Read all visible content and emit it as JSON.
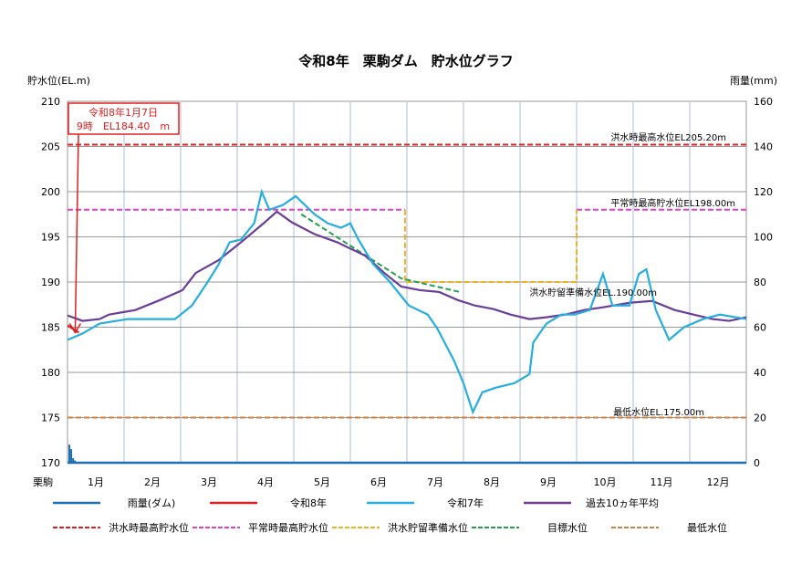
{
  "chart_data": {
    "type": "line",
    "title": "令和8年　栗駒ダム　貯水位グラフ",
    "ylabel": "貯水位(EL.m)",
    "y2label": "雨量(mm)",
    "ylim": [
      170,
      210
    ],
    "y2lim": [
      0,
      160
    ],
    "yticks": [
      "210",
      "205",
      "200",
      "195",
      "190",
      "185",
      "180",
      "175",
      "170"
    ],
    "y2ticks": [
      "160",
      "140",
      "120",
      "100",
      "80",
      "60",
      "40",
      "20",
      "0"
    ],
    "x_origin_label": "栗駒",
    "xticks": [
      "1月",
      "2月",
      "3月",
      "4月",
      "5月",
      "6月",
      "7月",
      "8月",
      "9月",
      "10月",
      "11月",
      "12月"
    ],
    "grid": true,
    "annotation": {
      "line1": "令和8年1月7日",
      "line2": "9時　EL184.40　m",
      "date": "1/7",
      "value": 184.4
    },
    "ref_labels": {
      "flood_max": "洪水時最高水位EL205.20m",
      "normal_max": "平常時最高貯水位EL198.00m",
      "flood_prep": "洪水貯留準備水位EL.190.00m",
      "min": "最低水位EL.175.00m"
    },
    "series": [
      {
        "name": "雨量(ダム)",
        "axis": "right",
        "color": "#1f6fb5",
        "kind": "bar",
        "points": [
          [
            "1/1",
            8
          ],
          [
            "1/2",
            6
          ],
          [
            "1/3",
            2
          ],
          [
            "1/4",
            1
          ]
        ]
      },
      {
        "name": "令和8年",
        "color": "#e02020",
        "points": [
          [
            "1/1",
            185.2
          ],
          [
            "1/4",
            184.8
          ],
          [
            "1/7",
            184.4
          ]
        ]
      },
      {
        "name": "令和7年",
        "color": "#27aee0",
        "points": [
          [
            "1/1",
            183.6
          ],
          [
            "1/9",
            184.3
          ],
          [
            "1/18",
            185.4
          ],
          [
            "2/3",
            185.9
          ],
          [
            "2/28",
            185.9
          ],
          [
            "3/7",
            187.4
          ],
          [
            "3/15",
            189.9
          ],
          [
            "3/21",
            191.9
          ],
          [
            "3/27",
            194.4
          ],
          [
            "4/3",
            194.7
          ],
          [
            "4/10",
            196.5
          ],
          [
            "4/14",
            200.0
          ],
          [
            "4/18",
            198.0
          ],
          [
            "4/25",
            198.5
          ],
          [
            "5/2",
            199.5
          ],
          [
            "5/7",
            198.5
          ],
          [
            "5/12",
            197.5
          ],
          [
            "5/19",
            196.5
          ],
          [
            "5/26",
            196.0
          ],
          [
            "5/31",
            196.5
          ],
          [
            "6/5",
            194.8
          ],
          [
            "6/13",
            192.0
          ],
          [
            "6/22",
            190.0
          ],
          [
            "7/2",
            187.4
          ],
          [
            "7/12",
            186.4
          ],
          [
            "7/17",
            184.9
          ],
          [
            "7/21",
            183.3
          ],
          [
            "7/26",
            181.3
          ],
          [
            "7/31",
            178.8
          ],
          [
            "8/6",
            175.6
          ],
          [
            "8/11",
            177.8
          ],
          [
            "8/18",
            178.3
          ],
          [
            "8/28",
            178.8
          ],
          [
            "9/6",
            179.8
          ],
          [
            "9/8",
            183.3
          ],
          [
            "9/15",
            185.4
          ],
          [
            "9/23",
            186.4
          ],
          [
            "9/30",
            186.4
          ],
          [
            "10/8",
            186.9
          ],
          [
            "10/15",
            190.9
          ],
          [
            "10/20",
            187.4
          ],
          [
            "10/29",
            187.4
          ],
          [
            "11/4",
            190.9
          ],
          [
            "11/8",
            191.4
          ],
          [
            "11/13",
            186.9
          ],
          [
            "11/20",
            183.6
          ],
          [
            "11/28",
            185.0
          ],
          [
            "12/8",
            185.9
          ],
          [
            "12/17",
            186.4
          ],
          [
            "12/31",
            185.9
          ]
        ]
      },
      {
        "name": "過去10ヵ年平均",
        "color": "#6a3d9a",
        "points": [
          [
            "1/1",
            186.3
          ],
          [
            "1/9",
            185.7
          ],
          [
            "1/18",
            185.9
          ],
          [
            "1/23",
            186.4
          ],
          [
            "2/7",
            186.9
          ],
          [
            "2/20",
            188.0
          ],
          [
            "3/2",
            189.1
          ],
          [
            "3/9",
            191.0
          ],
          [
            "3/21",
            192.4
          ],
          [
            "4/3",
            194.4
          ],
          [
            "4/15",
            196.5
          ],
          [
            "4/22",
            197.8
          ],
          [
            "4/30",
            196.6
          ],
          [
            "5/12",
            195.3
          ],
          [
            "5/24",
            194.4
          ],
          [
            "6/9",
            192.9
          ],
          [
            "6/19",
            191.0
          ],
          [
            "6/28",
            189.5
          ],
          [
            "7/8",
            189.1
          ],
          [
            "7/18",
            188.9
          ],
          [
            "7/28",
            188.0
          ],
          [
            "8/7",
            187.4
          ],
          [
            "8/17",
            187.0
          ],
          [
            "8/26",
            186.4
          ],
          [
            "9/6",
            185.9
          ],
          [
            "9/15",
            186.1
          ],
          [
            "9/25",
            186.4
          ],
          [
            "10/5",
            186.9
          ],
          [
            "10/15",
            187.2
          ],
          [
            "10/29",
            187.7
          ],
          [
            "11/11",
            187.9
          ],
          [
            "11/23",
            186.9
          ],
          [
            "12/3",
            186.4
          ],
          [
            "12/13",
            185.9
          ],
          [
            "12/22",
            185.7
          ],
          [
            "12/31",
            186.1
          ]
        ]
      },
      {
        "name": "洪水時最高貯水位",
        "color": "#e02020",
        "dashed": true,
        "points": [
          [
            "1/1",
            205.2
          ],
          [
            "12/31",
            205.2
          ]
        ]
      },
      {
        "name": "平常時最高貯水位",
        "color": "#e040c8",
        "dashed": true,
        "segments": [
          [
            [
              "1/1",
              198.0
            ],
            [
              "6/30",
              198.0
            ]
          ],
          [
            [
              "10/1",
              198.0
            ],
            [
              "12/31",
              198.0
            ]
          ]
        ]
      },
      {
        "name": "洪水貯留準備水位",
        "color": "#f0b020",
        "dashed": true,
        "points": [
          [
            "6/30",
            198.0
          ],
          [
            "6/30",
            190.0
          ],
          [
            "10/1",
            190.0
          ],
          [
            "10/1",
            198.0
          ]
        ]
      },
      {
        "name": "目標水位",
        "color": "#22a050",
        "dashed": true,
        "points": [
          [
            "5/5",
            197.5
          ],
          [
            "6/28",
            190.4
          ],
          [
            "7/29",
            188.9
          ]
        ]
      },
      {
        "name": "最低水位",
        "color": "#d08040",
        "dashed": true,
        "points": [
          [
            "1/1",
            175.0
          ],
          [
            "12/31",
            175.0
          ]
        ]
      }
    ]
  }
}
